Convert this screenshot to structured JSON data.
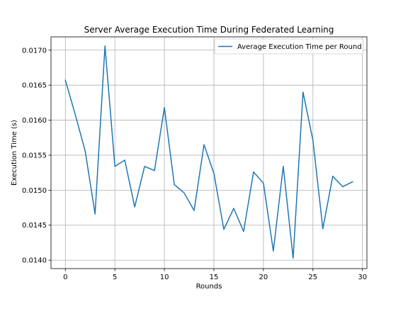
{
  "chart_data": {
    "type": "line",
    "title": "Server Average Execution Time During Federated Learning",
    "xlabel": "Rounds",
    "ylabel": "Execution Time (s)",
    "xlim": [
      -1.45,
      30.45
    ],
    "ylim": [
      0.01388,
      0.01719
    ],
    "grid": true,
    "legend_position": "top-right",
    "x_ticks": [
      0,
      5,
      10,
      15,
      20,
      25,
      30
    ],
    "x_tick_labels": [
      "0",
      "5",
      "10",
      "15",
      "20",
      "25",
      "30"
    ],
    "y_ticks": [
      0.014,
      0.0145,
      0.015,
      0.0155,
      0.016,
      0.0165,
      0.017
    ],
    "y_tick_labels": [
      "0.0140",
      "0.0145",
      "0.0150",
      "0.0155",
      "0.0160",
      "0.0165",
      "0.0170"
    ],
    "series": [
      {
        "name": "Average Execution Time per Round",
        "color": "#1f77b4",
        "x": [
          0,
          1,
          2,
          3,
          4,
          5,
          6,
          7,
          8,
          9,
          10,
          11,
          12,
          13,
          14,
          15,
          16,
          17,
          18,
          19,
          20,
          21,
          22,
          23,
          24,
          25,
          26,
          27,
          28,
          29
        ],
        "y": [
          0.01657,
          0.01608,
          0.01556,
          0.01466,
          0.01706,
          0.01534,
          0.01543,
          0.01476,
          0.01534,
          0.01528,
          0.01618,
          0.01508,
          0.01496,
          0.01471,
          0.01565,
          0.01524,
          0.01444,
          0.01474,
          0.01441,
          0.01526,
          0.0151,
          0.01413,
          0.01534,
          0.01403,
          0.0164,
          0.01571,
          0.01445,
          0.0152,
          0.01505,
          0.01512
        ]
      }
    ]
  }
}
